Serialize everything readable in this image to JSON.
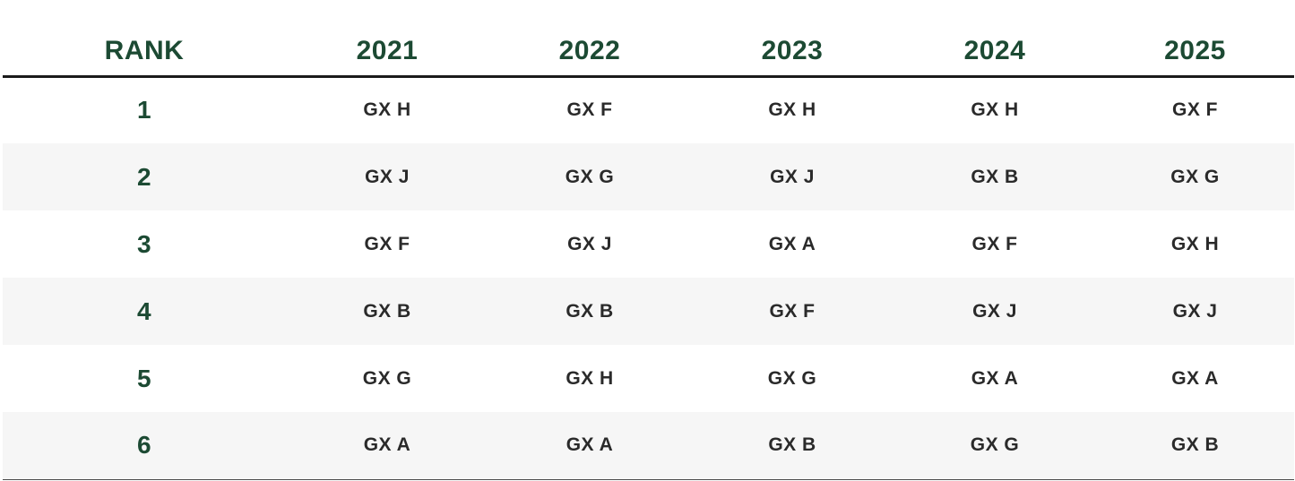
{
  "table": {
    "headers": [
      "RANK",
      "2021",
      "2022",
      "2023",
      "2024",
      "2025"
    ],
    "rows": [
      {
        "rank": "1",
        "cells": [
          "GX H",
          "GX F",
          "GX H",
          "GX H",
          "GX F"
        ]
      },
      {
        "rank": "2",
        "cells": [
          "GX J",
          "GX G",
          "GX J",
          "GX B",
          "GX G"
        ]
      },
      {
        "rank": "3",
        "cells": [
          "GX F",
          "GX J",
          "GX A",
          "GX F",
          "GX H"
        ]
      },
      {
        "rank": "4",
        "cells": [
          "GX B",
          "GX B",
          "GX F",
          "GX J",
          "GX J"
        ]
      },
      {
        "rank": "5",
        "cells": [
          "GX G",
          "GX H",
          "GX G",
          "GX A",
          "GX A"
        ]
      },
      {
        "rank": "6",
        "cells": [
          "GX A",
          "GX A",
          "GX B",
          "GX G",
          "GX B"
        ]
      }
    ]
  },
  "colors": {
    "header_text": "#1c4a33",
    "body_text": "#2a2a2a",
    "stripe": "#f6f6f6",
    "rule": "#1b1b1b"
  }
}
